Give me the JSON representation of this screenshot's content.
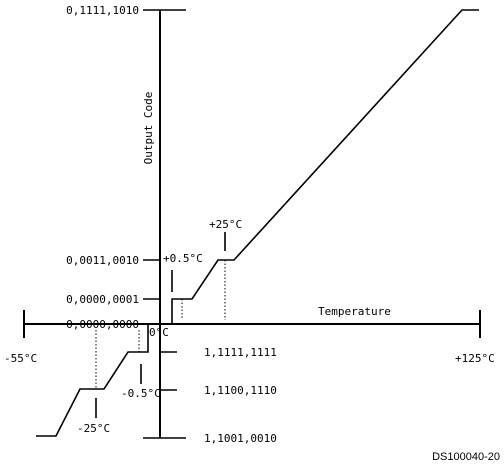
{
  "axes": {
    "y_label": "Output Code",
    "x_label": "Temperature"
  },
  "codes": {
    "top": "0,1111,1010",
    "plus_half": "0,0011,0010",
    "lsb": "0,0000,0001",
    "zero": "0,0000,0000",
    "minus_one": "1,1111,1111",
    "minus_half": "1,1100,1110",
    "bottom": "1,1001,0010"
  },
  "temps": {
    "minus55": "-55°C",
    "plus125": "+125°C",
    "zero": "0°C",
    "plus25": "+25°C",
    "plus_half": "+0.5°C",
    "minus_half": "-0.5°C",
    "minus25": "-25°C"
  },
  "figure_id": "DS100040-20"
}
